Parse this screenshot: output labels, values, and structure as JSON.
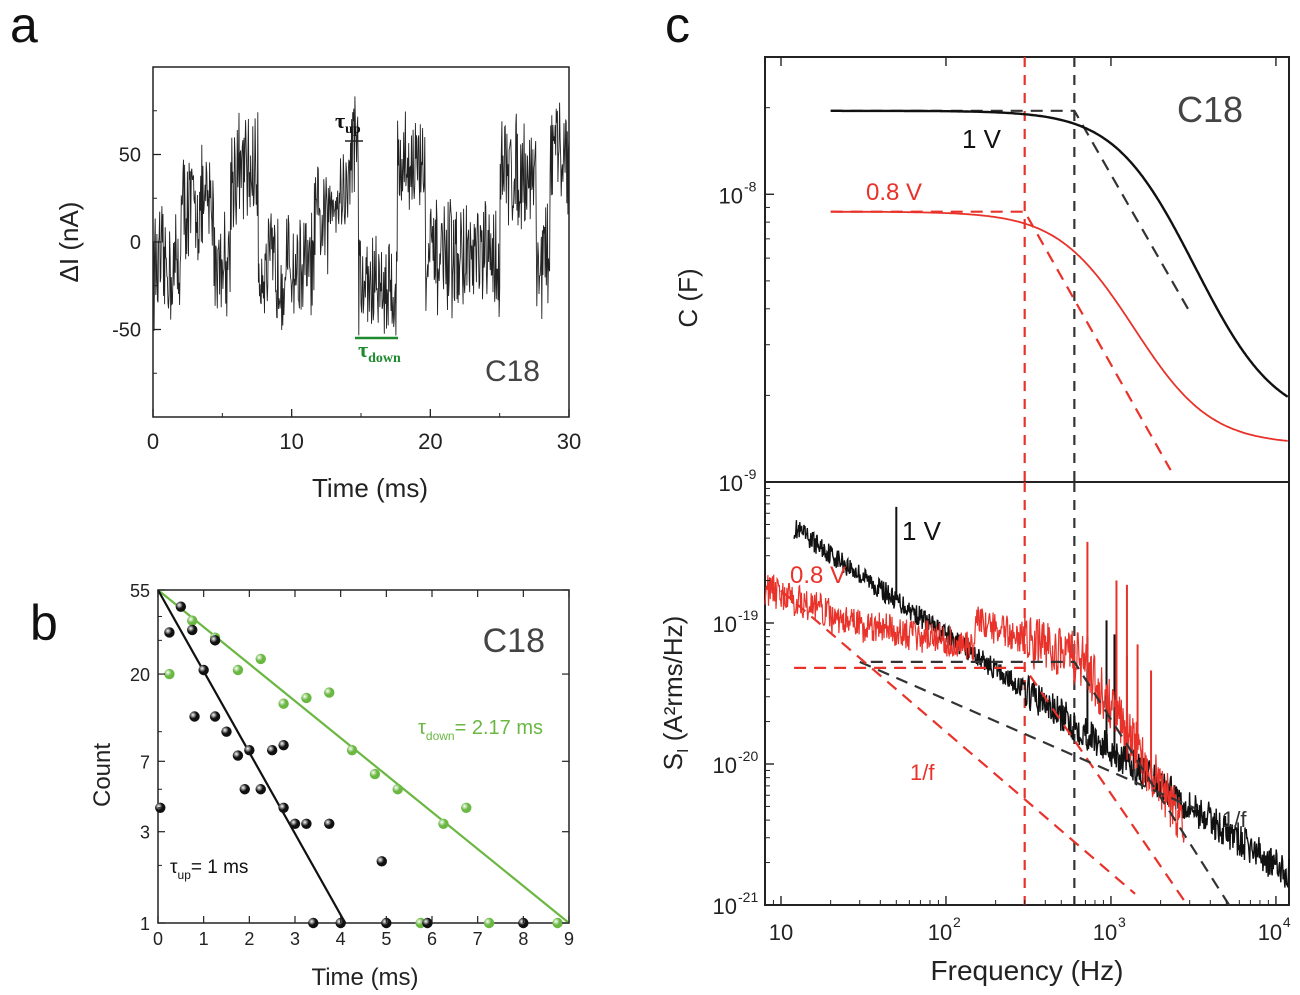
{
  "panel_letters": [
    "a",
    "b",
    "c"
  ],
  "chart_data": [
    {
      "id": "a",
      "type": "line",
      "xlabel": "Time (ms)",
      "ylabel": "ΔI (nA)",
      "xlim": [
        0,
        30
      ],
      "ylim": [
        -100,
        100
      ],
      "xticks": [
        "0",
        "10",
        "20",
        "30"
      ],
      "yticks": [
        "50",
        "0",
        "-50"
      ],
      "tag": "C18",
      "annotations": {
        "tau_up": "τup",
        "tau_down": "τdown"
      },
      "trace_color": "#222222",
      "tau_down_color": "#1e8a2e",
      "levels": [
        {
          "t0": 0.0,
          "t1": 2.0,
          "v": -15
        },
        {
          "t0": 2.0,
          "t1": 4.4,
          "v": 20
        },
        {
          "t0": 4.4,
          "t1": 5.6,
          "v": -10
        },
        {
          "t0": 5.6,
          "t1": 7.6,
          "v": 40
        },
        {
          "t0": 7.6,
          "t1": 11.6,
          "v": -15
        },
        {
          "t0": 11.6,
          "t1": 12.8,
          "v": 10
        },
        {
          "t0": 12.8,
          "t1": 14.2,
          "v": 30
        },
        {
          "t0": 14.2,
          "t1": 14.8,
          "v": 60
        },
        {
          "t0": 14.8,
          "t1": 17.6,
          "v": -25
        },
        {
          "t0": 17.6,
          "t1": 19.6,
          "v": 45
        },
        {
          "t0": 19.6,
          "t1": 25.0,
          "v": -10
        },
        {
          "t0": 25.0,
          "t1": 27.6,
          "v": 40
        },
        {
          "t0": 27.6,
          "t1": 28.6,
          "v": -10
        },
        {
          "t0": 28.6,
          "t1": 30.0,
          "v": 50
        }
      ]
    },
    {
      "id": "b",
      "type": "scatter",
      "xlabel": "Time (ms)",
      "ylabel": "Count",
      "xlim": [
        0,
        9
      ],
      "ylim": [
        1,
        55
      ],
      "yscale": "log",
      "xticks": [
        "0",
        "1",
        "2",
        "3",
        "4",
        "5",
        "6",
        "7",
        "8",
        "9"
      ],
      "yticks": [
        "55",
        "20",
        "7",
        "3",
        "1"
      ],
      "tag": "C18",
      "fit_labels": {
        "down": "τdown = 2.17 ms",
        "up": "τup = 1 ms"
      },
      "series": [
        {
          "name": "τdown",
          "color": "#6ab742",
          "points": [
            [
              0.25,
              20
            ],
            [
              0.75,
              38
            ],
            [
              1.25,
              31
            ],
            [
              1.75,
              21
            ],
            [
              2.25,
              24
            ],
            [
              2.75,
              14
            ],
            [
              3.25,
              15
            ],
            [
              3.75,
              16
            ],
            [
              4.25,
              8
            ],
            [
              4.75,
              6
            ],
            [
              5.25,
              5
            ],
            [
              5.75,
              1
            ],
            [
              6.25,
              3.3
            ],
            [
              6.75,
              4
            ],
            [
              7.25,
              1
            ],
            [
              8.75,
              1
            ]
          ]
        },
        {
          "name": "τup",
          "color": "#111111",
          "points": [
            [
              0.05,
              4
            ],
            [
              0.25,
              33
            ],
            [
              0.5,
              45
            ],
            [
              0.75,
              34
            ],
            [
              1.0,
              21
            ],
            [
              1.25,
              30
            ],
            [
              0.8,
              12
            ],
            [
              1.25,
              12
            ],
            [
              1.5,
              10
            ],
            [
              1.75,
              7.5
            ],
            [
              2.0,
              8
            ],
            [
              2.5,
              8
            ],
            [
              2.75,
              8.5
            ],
            [
              1.9,
              5
            ],
            [
              2.25,
              5
            ],
            [
              2.75,
              4
            ],
            [
              3.0,
              3.3
            ],
            [
              3.25,
              3.3
            ],
            [
              3.75,
              3.3
            ],
            [
              4.9,
              2.1
            ],
            [
              3.4,
              1
            ],
            [
              4.0,
              1
            ],
            [
              5.0,
              1
            ],
            [
              5.9,
              1
            ],
            [
              8.0,
              1
            ]
          ]
        }
      ],
      "fits": [
        {
          "series": "τdown",
          "x": [
            0.0,
            9.0
          ],
          "y": [
            55,
            1
          ]
        },
        {
          "series": "τup",
          "x": [
            0.0,
            4.1
          ],
          "y": [
            55,
            1
          ]
        }
      ]
    },
    {
      "id": "c-top",
      "type": "line",
      "xscale": "log",
      "yscale": "log",
      "ylabel": "C (F)",
      "xlim": [
        8,
        12000
      ],
      "ylim": [
        1e-09,
        3e-08
      ],
      "ytick_base": [
        "10",
        "10"
      ],
      "ytick_exp": [
        "-8",
        "-9"
      ],
      "tag": "C18",
      "series": [
        {
          "name": "1 V",
          "color": "#111111",
          "f_c": 600,
          "c_high": 1.95e-08,
          "c_low": 1.6e-09,
          "f_range": [
            20,
            12000
          ]
        },
        {
          "name": "0.8 V",
          "color": "#e8322a",
          "f_c": 300,
          "c_high": 8.7e-09,
          "c_low": 1.35e-09,
          "f_range": [
            20,
            12000
          ]
        }
      ],
      "asymptotes": [
        {
          "color": "#333333",
          "x": [
            20,
            600,
            3000
          ],
          "y": [
            1.95e-08,
            1.95e-08,
            3.9e-09
          ]
        },
        {
          "color": "#e8322a",
          "x": [
            20,
            300,
            2300
          ],
          "y": [
            8.7e-09,
            8.7e-09,
            1.1e-09
          ]
        }
      ],
      "vlines": [
        {
          "x": 300,
          "color": "#e8322a"
        },
        {
          "x": 600,
          "color": "#333333"
        }
      ]
    },
    {
      "id": "c-bottom",
      "type": "line",
      "xscale": "log",
      "yscale": "log",
      "xlabel": "Frequency (Hz)",
      "ylabel_main": "S",
      "ylabel_sub": "I",
      "ylabel_rest": "(A²rms/Hz)",
      "xlim": [
        8,
        12000
      ],
      "ylim": [
        1e-21,
        1e-18
      ],
      "xticks": [
        "10",
        "10",
        "10",
        "10"
      ],
      "xtick_exp": [
        "",
        "2",
        "3",
        "4"
      ],
      "ytick_base": [
        "10",
        "10",
        "10"
      ],
      "ytick_exp": [
        "-19",
        "-20",
        "-21"
      ],
      "series": [
        {
          "name": "1 V",
          "color": "#111111",
          "a": 3.6e-18,
          "exp": -0.82,
          "f_range": [
            12,
            12000
          ],
          "spikes": [
            [
              50,
              2.2
            ],
            [
              720,
              2.3
            ],
            [
              940,
              3.0
            ],
            [
              1050,
              2.8
            ],
            [
              1250,
              2.5
            ]
          ]
        },
        {
          "name": "0.8 V",
          "color": "#e8322a",
          "a": 1.2e-18,
          "exp": -0.75,
          "f_range": [
            8,
            2800
          ],
          "spikes": [
            [
              720,
              3.0
            ],
            [
              1080,
              3.2
            ],
            [
              1250,
              3.5
            ],
            [
              1450,
              2.5
            ],
            [
              1750,
              2.4
            ]
          ]
        }
      ],
      "reference_lines": [
        {
          "label": "1/f",
          "color": "#333333",
          "x": [
            30,
            3300
          ],
          "y": [
            5.3e-20,
            4.8e-21
          ]
        },
        {
          "label": "1/f",
          "color": "#e8322a",
          "x": [
            10,
            1400
          ],
          "y": [
            1.7e-19,
            1.2e-21
          ]
        }
      ],
      "plateau_fits": [
        {
          "color": "#333333",
          "x": [
            35,
            600,
            5200
          ],
          "y": [
            5.3e-20,
            5.3e-20,
            1e-21
          ]
        },
        {
          "color": "#e8322a",
          "x": [
            12,
            300,
            2900
          ],
          "y": [
            4.8e-20,
            4.8e-20,
            1e-21
          ]
        }
      ],
      "vlines": [
        {
          "x": 300,
          "color": "#e8322a"
        },
        {
          "x": 600,
          "color": "#333333"
        }
      ]
    }
  ]
}
